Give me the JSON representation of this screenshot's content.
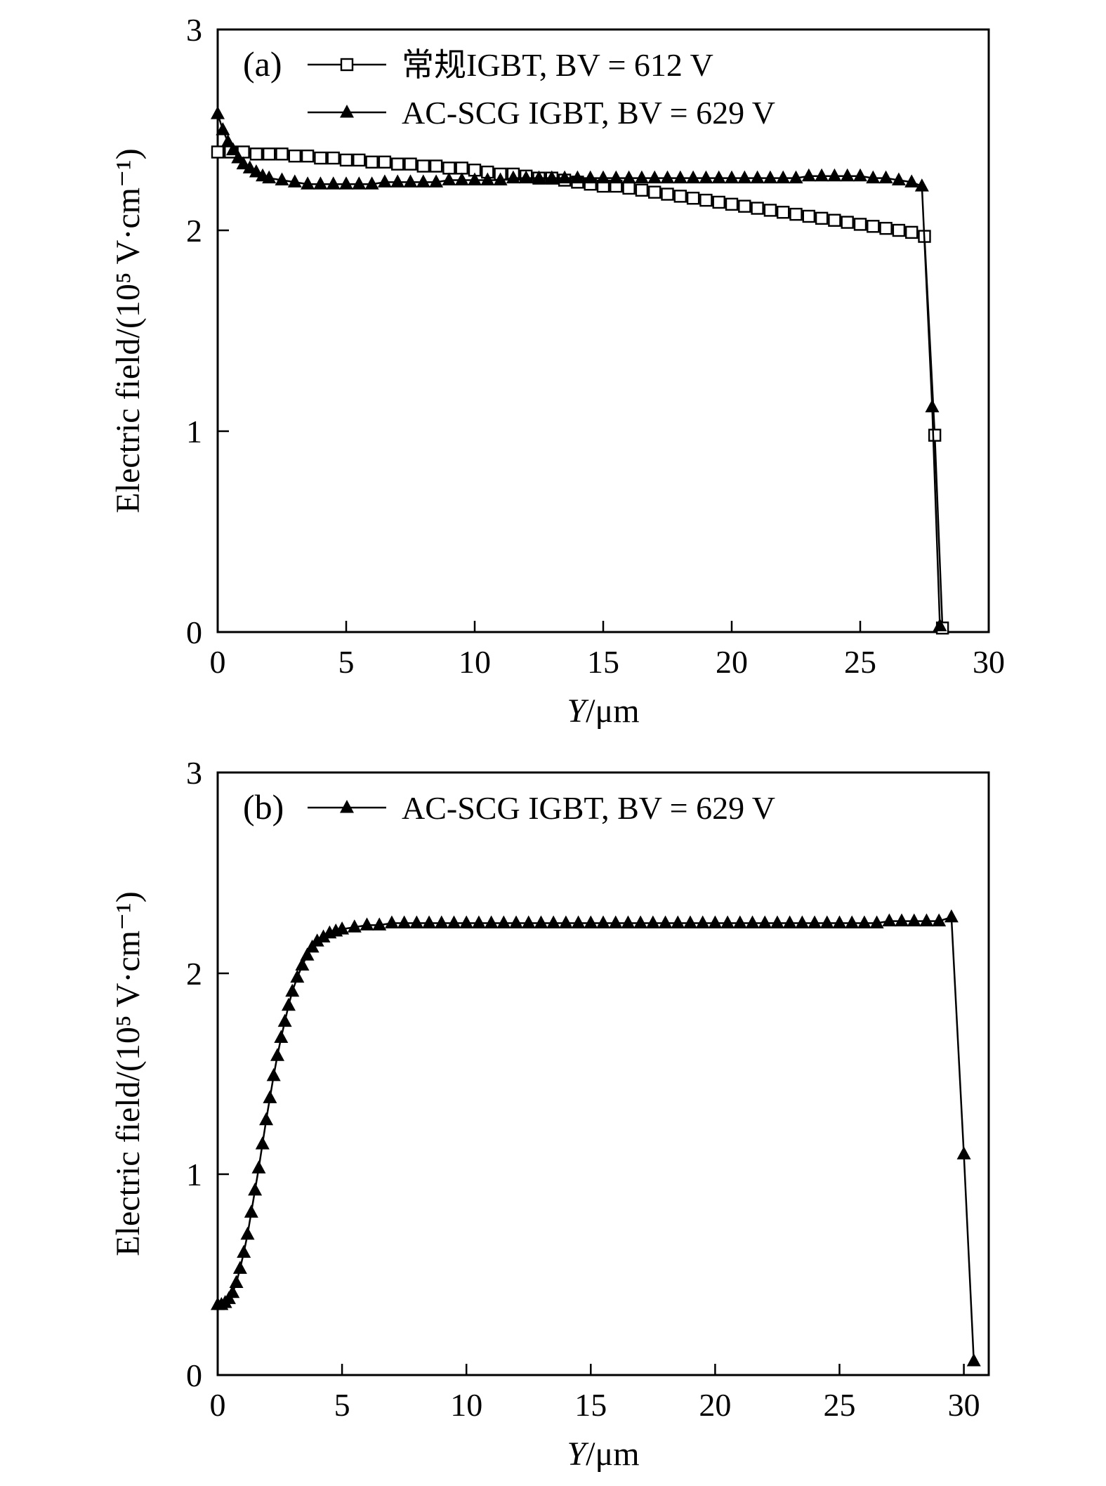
{
  "page": {
    "background": "#ffffff",
    "foreground": "#000000"
  },
  "chart_data": [
    {
      "type": "line",
      "panel_label": "(a)",
      "xlabel": "Y/μm",
      "ylabel": "Electric field/(10⁵ V·cm⁻¹)",
      "xlim": [
        0,
        30
      ],
      "ylim": [
        0,
        3
      ],
      "xticks": [
        0,
        5,
        10,
        15,
        20,
        25,
        30
      ],
      "yticks": [
        0,
        1,
        2,
        3
      ],
      "grid": false,
      "legend_position": "top-left-inside",
      "series": [
        {
          "name": "常规IGBT, BV = 612 V",
          "marker": "open-square",
          "color": "#000000",
          "points": [
            [
              0,
              2.39
            ],
            [
              0.5,
              2.39
            ],
            [
              1,
              2.39
            ],
            [
              1.5,
              2.38
            ],
            [
              2,
              2.38
            ],
            [
              2.5,
              2.38
            ],
            [
              3,
              2.37
            ],
            [
              3.5,
              2.37
            ],
            [
              4,
              2.36
            ],
            [
              4.5,
              2.36
            ],
            [
              5,
              2.35
            ],
            [
              5.5,
              2.35
            ],
            [
              6,
              2.34
            ],
            [
              6.5,
              2.34
            ],
            [
              7,
              2.33
            ],
            [
              7.5,
              2.33
            ],
            [
              8,
              2.32
            ],
            [
              8.5,
              2.32
            ],
            [
              9,
              2.31
            ],
            [
              9.5,
              2.31
            ],
            [
              10,
              2.3
            ],
            [
              10.5,
              2.29
            ],
            [
              11,
              2.28
            ],
            [
              11.5,
              2.28
            ],
            [
              12,
              2.27
            ],
            [
              12.5,
              2.26
            ],
            [
              13,
              2.26
            ],
            [
              13.5,
              2.25
            ],
            [
              14,
              2.24
            ],
            [
              14.5,
              2.23
            ],
            [
              15,
              2.22
            ],
            [
              15.5,
              2.22
            ],
            [
              16,
              2.21
            ],
            [
              16.5,
              2.2
            ],
            [
              17,
              2.19
            ],
            [
              17.5,
              2.18
            ],
            [
              18,
              2.17
            ],
            [
              18.5,
              2.16
            ],
            [
              19,
              2.15
            ],
            [
              19.5,
              2.14
            ],
            [
              20,
              2.13
            ],
            [
              20.5,
              2.12
            ],
            [
              21,
              2.11
            ],
            [
              21.5,
              2.1
            ],
            [
              22,
              2.09
            ],
            [
              22.5,
              2.08
            ],
            [
              23,
              2.07
            ],
            [
              23.5,
              2.06
            ],
            [
              24,
              2.05
            ],
            [
              24.5,
              2.04
            ],
            [
              25,
              2.03
            ],
            [
              25.5,
              2.02
            ],
            [
              26,
              2.01
            ],
            [
              26.5,
              2.0
            ],
            [
              27,
              1.99
            ],
            [
              27.5,
              1.97
            ],
            [
              27.9,
              0.98
            ],
            [
              28.2,
              0.02
            ]
          ]
        },
        {
          "name": "AC-SCG IGBT, BV = 629 V",
          "marker": "filled-triangle",
          "color": "#000000",
          "points": [
            [
              0,
              2.58
            ],
            [
              0.2,
              2.5
            ],
            [
              0.4,
              2.44
            ],
            [
              0.6,
              2.4
            ],
            [
              0.8,
              2.36
            ],
            [
              1,
              2.33
            ],
            [
              1.25,
              2.31
            ],
            [
              1.5,
              2.29
            ],
            [
              1.75,
              2.27
            ],
            [
              2,
              2.26
            ],
            [
              2.5,
              2.25
            ],
            [
              3,
              2.24
            ],
            [
              3.5,
              2.23
            ],
            [
              4,
              2.23
            ],
            [
              4.5,
              2.23
            ],
            [
              5,
              2.23
            ],
            [
              5.5,
              2.23
            ],
            [
              6,
              2.23
            ],
            [
              6.5,
              2.24
            ],
            [
              7,
              2.24
            ],
            [
              7.5,
              2.24
            ],
            [
              8,
              2.24
            ],
            [
              8.5,
              2.24
            ],
            [
              9,
              2.25
            ],
            [
              9.5,
              2.25
            ],
            [
              10,
              2.25
            ],
            [
              10.5,
              2.25
            ],
            [
              11,
              2.25
            ],
            [
              11.5,
              2.26
            ],
            [
              12,
              2.26
            ],
            [
              12.5,
              2.26
            ],
            [
              13,
              2.26
            ],
            [
              13.5,
              2.26
            ],
            [
              14,
              2.26
            ],
            [
              14.5,
              2.26
            ],
            [
              15,
              2.26
            ],
            [
              15.5,
              2.26
            ],
            [
              16,
              2.26
            ],
            [
              16.5,
              2.26
            ],
            [
              17,
              2.26
            ],
            [
              17.5,
              2.26
            ],
            [
              18,
              2.26
            ],
            [
              18.5,
              2.26
            ],
            [
              19,
              2.26
            ],
            [
              19.5,
              2.26
            ],
            [
              20,
              2.26
            ],
            [
              20.5,
              2.26
            ],
            [
              21,
              2.26
            ],
            [
              21.5,
              2.26
            ],
            [
              22,
              2.26
            ],
            [
              22.5,
              2.26
            ],
            [
              23,
              2.27
            ],
            [
              23.5,
              2.27
            ],
            [
              24,
              2.27
            ],
            [
              24.5,
              2.27
            ],
            [
              25,
              2.27
            ],
            [
              25.5,
              2.26
            ],
            [
              26,
              2.26
            ],
            [
              26.5,
              2.25
            ],
            [
              27,
              2.24
            ],
            [
              27.4,
              2.22
            ],
            [
              27.8,
              1.12
            ],
            [
              28.1,
              0.03
            ]
          ]
        }
      ]
    },
    {
      "type": "line",
      "panel_label": "(b)",
      "xlabel": "Y/μm",
      "ylabel": "Electric field/(10⁵ V·cm⁻¹)",
      "xlim": [
        0,
        31
      ],
      "ylim": [
        0,
        3
      ],
      "xticks": [
        0,
        5,
        10,
        15,
        20,
        25,
        30
      ],
      "yticks": [
        0,
        1,
        2,
        3
      ],
      "grid": false,
      "legend_position": "top-left-inside",
      "series": [
        {
          "name": "AC-SCG IGBT, BV = 629 V",
          "marker": "filled-triangle",
          "color": "#000000",
          "points": [
            [
              0,
              0.35
            ],
            [
              0.15,
              0.35
            ],
            [
              0.3,
              0.36
            ],
            [
              0.45,
              0.38
            ],
            [
              0.6,
              0.41
            ],
            [
              0.75,
              0.46
            ],
            [
              0.9,
              0.53
            ],
            [
              1.05,
              0.61
            ],
            [
              1.2,
              0.7
            ],
            [
              1.35,
              0.81
            ],
            [
              1.5,
              0.92
            ],
            [
              1.65,
              1.03
            ],
            [
              1.8,
              1.15
            ],
            [
              1.95,
              1.27
            ],
            [
              2.1,
              1.38
            ],
            [
              2.25,
              1.49
            ],
            [
              2.4,
              1.59
            ],
            [
              2.55,
              1.68
            ],
            [
              2.7,
              1.76
            ],
            [
              2.85,
              1.84
            ],
            [
              3,
              1.91
            ],
            [
              3.2,
              1.98
            ],
            [
              3.4,
              2.04
            ],
            [
              3.6,
              2.09
            ],
            [
              3.8,
              2.13
            ],
            [
              4,
              2.16
            ],
            [
              4.25,
              2.18
            ],
            [
              4.5,
              2.2
            ],
            [
              4.75,
              2.21
            ],
            [
              5,
              2.22
            ],
            [
              5.5,
              2.23
            ],
            [
              6,
              2.24
            ],
            [
              6.5,
              2.24
            ],
            [
              7,
              2.25
            ],
            [
              7.5,
              2.25
            ],
            [
              8,
              2.25
            ],
            [
              8.5,
              2.25
            ],
            [
              9,
              2.25
            ],
            [
              9.5,
              2.25
            ],
            [
              10,
              2.25
            ],
            [
              10.5,
              2.25
            ],
            [
              11,
              2.25
            ],
            [
              11.5,
              2.25
            ],
            [
              12,
              2.25
            ],
            [
              12.5,
              2.25
            ],
            [
              13,
              2.25
            ],
            [
              13.5,
              2.25
            ],
            [
              14,
              2.25
            ],
            [
              14.5,
              2.25
            ],
            [
              15,
              2.25
            ],
            [
              15.5,
              2.25
            ],
            [
              16,
              2.25
            ],
            [
              16.5,
              2.25
            ],
            [
              17,
              2.25
            ],
            [
              17.5,
              2.25
            ],
            [
              18,
              2.25
            ],
            [
              18.5,
              2.25
            ],
            [
              19,
              2.25
            ],
            [
              19.5,
              2.25
            ],
            [
              20,
              2.25
            ],
            [
              20.5,
              2.25
            ],
            [
              21,
              2.25
            ],
            [
              21.5,
              2.25
            ],
            [
              22,
              2.25
            ],
            [
              22.5,
              2.25
            ],
            [
              23,
              2.25
            ],
            [
              23.5,
              2.25
            ],
            [
              24,
              2.25
            ],
            [
              24.5,
              2.25
            ],
            [
              25,
              2.25
            ],
            [
              25.5,
              2.25
            ],
            [
              26,
              2.25
            ],
            [
              26.5,
              2.25
            ],
            [
              27,
              2.26
            ],
            [
              27.5,
              2.26
            ],
            [
              28,
              2.26
            ],
            [
              28.5,
              2.26
            ],
            [
              29,
              2.26
            ],
            [
              29.5,
              2.28
            ],
            [
              30,
              1.1
            ],
            [
              30.4,
              0.07
            ]
          ]
        }
      ]
    }
  ]
}
